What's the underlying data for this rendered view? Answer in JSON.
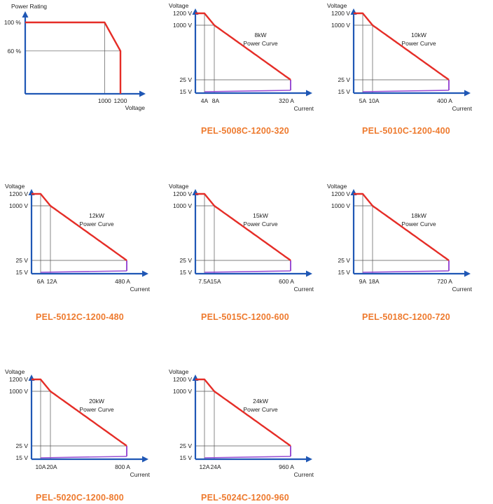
{
  "colors": {
    "axis": "#1f57b5",
    "curve": "#e52d27",
    "low_band": "#9a4fd4",
    "gridline": "#555555",
    "text": "#222222",
    "model_title": "#ee7a2e"
  },
  "rating_chart": {
    "type": "line",
    "ylabel": "Power Rating",
    "xlabel": "Voltage",
    "x_ticks": [
      "1000",
      "1200"
    ],
    "y_ticks": [
      "100 %",
      "60 %"
    ],
    "x": [
      0,
      1000,
      1200,
      1200
    ],
    "values": [
      100,
      100,
      60,
      0
    ],
    "ylim": [
      0,
      120
    ],
    "xlim": [
      0,
      1350
    ]
  },
  "chart_data": [
    {
      "type": "line",
      "model": "PEL-5008C-1200-320",
      "power_label": "8kW",
      "curve_label": "Power Curve",
      "ylabel": "Voltage",
      "xlabel": "Current",
      "voltage_ticks": [
        "1200 V",
        "1000 V",
        "25 V",
        "15 V"
      ],
      "current_ticks": [
        "4A",
        "8A",
        "320 A"
      ],
      "power_w": 8000,
      "v_max": 1200,
      "v_knee": 1000,
      "v_min": 15,
      "v_low": 25,
      "i_at_vmax": 4,
      "i_knee": 8,
      "i_max": 320
    },
    {
      "type": "line",
      "model": "PEL-5010C-1200-400",
      "power_label": "10kW",
      "curve_label": "Power Curve",
      "ylabel": "Voltage",
      "xlabel": "Current",
      "voltage_ticks": [
        "1200 V",
        "1000 V",
        "25 V",
        "15 V"
      ],
      "current_ticks": [
        "5A",
        "10A",
        "400 A"
      ],
      "power_w": 10000,
      "v_max": 1200,
      "v_knee": 1000,
      "v_min": 15,
      "v_low": 25,
      "i_at_vmax": 5,
      "i_knee": 10,
      "i_max": 400
    },
    {
      "type": "line",
      "model": "PEL-5012C-1200-480",
      "power_label": "12kW",
      "curve_label": "Power Curve",
      "ylabel": "Voltage",
      "xlabel": "Current",
      "voltage_ticks": [
        "1200 V",
        "1000 V",
        "25 V",
        "15 V"
      ],
      "current_ticks": [
        "6A",
        "12A",
        "480 A"
      ],
      "power_w": 12000,
      "v_max": 1200,
      "v_knee": 1000,
      "v_min": 15,
      "v_low": 25,
      "i_at_vmax": 6,
      "i_knee": 12,
      "i_max": 480
    },
    {
      "type": "line",
      "model": "PEL-5015C-1200-600",
      "power_label": "15kW",
      "curve_label": "Power Curve",
      "ylabel": "Voltage",
      "xlabel": "Current",
      "voltage_ticks": [
        "1200 V",
        "1000 V",
        "25 V",
        "15 V"
      ],
      "current_ticks": [
        "7.5A",
        "15A",
        "600 A"
      ],
      "power_w": 15000,
      "v_max": 1200,
      "v_knee": 1000,
      "v_min": 15,
      "v_low": 25,
      "i_at_vmax": 7.5,
      "i_knee": 15,
      "i_max": 600
    },
    {
      "type": "line",
      "model": "PEL-5018C-1200-720",
      "power_label": "18kW",
      "curve_label": "Power Curve",
      "ylabel": "Voltage",
      "xlabel": "Current",
      "voltage_ticks": [
        "1200 V",
        "1000 V",
        "25 V",
        "15 V"
      ],
      "current_ticks": [
        "9A",
        "18A",
        "720 A"
      ],
      "power_w": 18000,
      "v_max": 1200,
      "v_knee": 1000,
      "v_min": 15,
      "v_low": 25,
      "i_at_vmax": 9,
      "i_knee": 18,
      "i_max": 720
    },
    {
      "type": "line",
      "model": "PEL-5020C-1200-800",
      "power_label": "20kW",
      "curve_label": "Power Curve",
      "ylabel": "Voltage",
      "xlabel": "Current",
      "voltage_ticks": [
        "1200 V",
        "1000 V",
        "25 V",
        "15 V"
      ],
      "current_ticks": [
        "10A",
        "20A",
        "800 A"
      ],
      "power_w": 20000,
      "v_max": 1200,
      "v_knee": 1000,
      "v_min": 15,
      "v_low": 25,
      "i_at_vmax": 10,
      "i_knee": 20,
      "i_max": 800
    },
    {
      "type": "line",
      "model": "PEL-5024C-1200-960",
      "power_label": "24kW",
      "curve_label": "Power Curve",
      "ylabel": "Voltage",
      "xlabel": "Current",
      "voltage_ticks": [
        "1200 V",
        "1000 V",
        "25 V",
        "15 V"
      ],
      "current_ticks": [
        "12A",
        "24A",
        "960 A"
      ],
      "power_w": 24000,
      "v_max": 1200,
      "v_knee": 1000,
      "v_min": 15,
      "v_low": 25,
      "i_at_vmax": 12,
      "i_knee": 24,
      "i_max": 960
    }
  ]
}
